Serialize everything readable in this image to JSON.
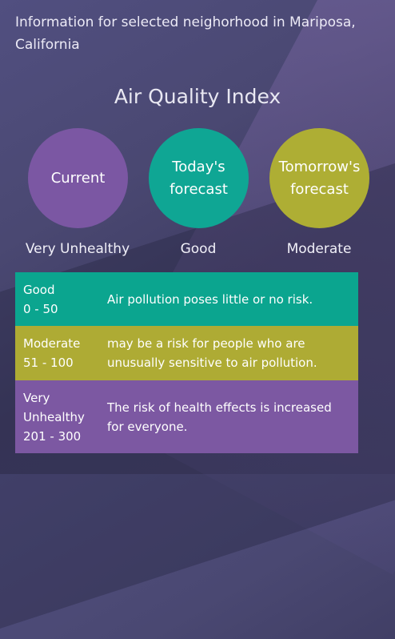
{
  "header": {
    "intro": "Information for selected neighorhood in Mariposa, California",
    "title": "Air Quality Index"
  },
  "indicators": [
    {
      "label": "Current",
      "status": "Very Unhealthy",
      "color": "#7b57a3"
    },
    {
      "label": "Today's forecast",
      "status": "Good",
      "color": "#0fa694"
    },
    {
      "label": "Tomorrow's forecast",
      "status": "Moderate",
      "color": "#aeae34"
    }
  ],
  "legend": [
    {
      "level": "Good",
      "range": "0 - 50",
      "description": "Air pollution poses little or no risk.",
      "color": "#0ba58f"
    },
    {
      "level": "Moderate",
      "range": "51 - 100",
      "description": "may be a risk for people who are unusually sensitive to air pollution.",
      "color": "#aeab34"
    },
    {
      "level": "Very Unhealthy",
      "range": "201 - 300",
      "description": "The risk of health effects is increased for everyone.",
      "color": "#7c58a2"
    }
  ]
}
